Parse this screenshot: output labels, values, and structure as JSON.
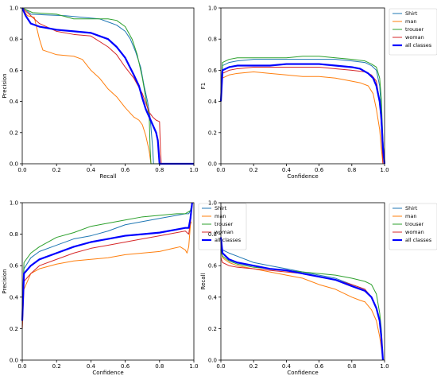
{
  "figure": {
    "colors": {
      "Shirt": "#1f77b4",
      "man": "#ff7f0e",
      "trouser": "#2ca02c",
      "woman": "#d62728",
      "all classes": "#0000ff"
    }
  },
  "chart_data": [
    {
      "id": "pr",
      "type": "line",
      "xlabel": "Recall",
      "ylabel": "Precision",
      "xlim": [
        0,
        1
      ],
      "ylim": [
        0,
        1
      ],
      "xticks": [
        0.0,
        0.2,
        0.4,
        0.6,
        0.8,
        1.0
      ],
      "yticks": [
        0.0,
        0.2,
        0.4,
        0.6,
        0.8,
        1.0
      ],
      "legend": null,
      "series": [
        {
          "name": "Shirt",
          "color": "#1f77b4",
          "width": 1,
          "x": [
            0.0,
            0.02,
            0.05,
            0.15,
            0.25,
            0.35,
            0.45,
            0.5,
            0.55,
            0.6,
            0.63,
            0.66,
            0.69,
            0.71,
            0.73,
            0.745,
            0.76,
            0.765,
            1.0
          ],
          "y": [
            1.0,
            0.99,
            0.96,
            0.955,
            0.95,
            0.94,
            0.93,
            0.91,
            0.89,
            0.85,
            0.8,
            0.72,
            0.62,
            0.5,
            0.4,
            0.3,
            0.1,
            0.0,
            0.0
          ]
        },
        {
          "name": "man",
          "color": "#ff7f0e",
          "width": 1,
          "x": [
            0.0,
            0.03,
            0.07,
            0.1,
            0.12,
            0.2,
            0.3,
            0.35,
            0.4,
            0.45,
            0.5,
            0.55,
            0.6,
            0.65,
            0.68,
            0.7,
            0.72,
            0.74,
            0.75
          ],
          "y": [
            1.0,
            0.95,
            0.94,
            0.8,
            0.73,
            0.7,
            0.69,
            0.67,
            0.6,
            0.55,
            0.48,
            0.43,
            0.36,
            0.3,
            0.28,
            0.25,
            0.18,
            0.08,
            0.0
          ]
        },
        {
          "name": "trouser",
          "color": "#2ca02c",
          "width": 1,
          "x": [
            0.0,
            0.02,
            0.06,
            0.2,
            0.3,
            0.4,
            0.5,
            0.55,
            0.6,
            0.64,
            0.67,
            0.7,
            0.72,
            0.74,
            0.745,
            0.75,
            1.0
          ],
          "y": [
            1.0,
            0.99,
            0.97,
            0.96,
            0.93,
            0.93,
            0.93,
            0.92,
            0.88,
            0.8,
            0.7,
            0.55,
            0.42,
            0.3,
            0.1,
            0.0,
            0.0
          ]
        },
        {
          "name": "woman",
          "color": "#d62728",
          "width": 1,
          "x": [
            0.0,
            0.05,
            0.1,
            0.2,
            0.3,
            0.4,
            0.5,
            0.55,
            0.6,
            0.65,
            0.7,
            0.74,
            0.76,
            0.78,
            0.8,
            0.805,
            0.81
          ],
          "y": [
            1.0,
            0.95,
            0.9,
            0.85,
            0.83,
            0.82,
            0.75,
            0.7,
            0.62,
            0.55,
            0.45,
            0.33,
            0.3,
            0.28,
            0.27,
            0.1,
            0.0
          ]
        },
        {
          "name": "all classes",
          "color": "#0000ff",
          "width": 2.2,
          "x": [
            0.0,
            0.02,
            0.05,
            0.1,
            0.15,
            0.2,
            0.3,
            0.4,
            0.45,
            0.5,
            0.55,
            0.6,
            0.65,
            0.68,
            0.7,
            0.72,
            0.74,
            0.76,
            0.78,
            0.79,
            0.8,
            1.0
          ],
          "y": [
            1.0,
            0.95,
            0.9,
            0.88,
            0.87,
            0.86,
            0.85,
            0.84,
            0.82,
            0.8,
            0.75,
            0.68,
            0.57,
            0.5,
            0.42,
            0.35,
            0.3,
            0.25,
            0.2,
            0.15,
            0.0,
            0.0
          ]
        }
      ]
    },
    {
      "id": "f1",
      "type": "line",
      "xlabel": "Confidence",
      "ylabel": "F1",
      "xlim": [
        0,
        1
      ],
      "ylim": [
        0,
        1
      ],
      "xticks": [
        0.0,
        0.2,
        0.4,
        0.6,
        0.8,
        1.0
      ],
      "yticks": [
        0.0,
        0.2,
        0.4,
        0.6,
        0.8,
        1.0
      ],
      "legend": "top-right",
      "series": [
        {
          "name": "Shirt",
          "color": "#1f77b4",
          "width": 1,
          "x": [
            0.0,
            0.01,
            0.05,
            0.1,
            0.2,
            0.3,
            0.4,
            0.5,
            0.6,
            0.7,
            0.8,
            0.88,
            0.92,
            0.95,
            0.97,
            0.98,
            0.99,
            1.0
          ],
          "y": [
            0.4,
            0.63,
            0.65,
            0.66,
            0.67,
            0.67,
            0.67,
            0.67,
            0.67,
            0.67,
            0.66,
            0.65,
            0.63,
            0.6,
            0.5,
            0.35,
            0.1,
            0.0
          ]
        },
        {
          "name": "man",
          "color": "#ff7f0e",
          "width": 1,
          "x": [
            0.0,
            0.01,
            0.05,
            0.1,
            0.2,
            0.3,
            0.4,
            0.5,
            0.6,
            0.7,
            0.8,
            0.85,
            0.9,
            0.93,
            0.95,
            0.97,
            0.98,
            0.99
          ],
          "y": [
            0.4,
            0.55,
            0.57,
            0.58,
            0.59,
            0.58,
            0.57,
            0.56,
            0.56,
            0.55,
            0.53,
            0.52,
            0.5,
            0.45,
            0.35,
            0.22,
            0.1,
            0.0
          ]
        },
        {
          "name": "trouser",
          "color": "#2ca02c",
          "width": 1,
          "x": [
            0.0,
            0.01,
            0.05,
            0.1,
            0.2,
            0.3,
            0.4,
            0.5,
            0.6,
            0.7,
            0.8,
            0.88,
            0.92,
            0.95,
            0.97,
            0.98,
            0.99,
            1.0
          ],
          "y": [
            0.45,
            0.65,
            0.67,
            0.68,
            0.68,
            0.68,
            0.68,
            0.69,
            0.69,
            0.68,
            0.67,
            0.66,
            0.64,
            0.62,
            0.55,
            0.42,
            0.15,
            0.0
          ]
        },
        {
          "name": "woman",
          "color": "#d62728",
          "width": 1,
          "x": [
            0.0,
            0.01,
            0.05,
            0.1,
            0.2,
            0.3,
            0.4,
            0.5,
            0.6,
            0.7,
            0.8,
            0.88,
            0.92,
            0.95,
            0.97,
            0.98,
            0.99
          ],
          "y": [
            0.4,
            0.58,
            0.6,
            0.61,
            0.62,
            0.62,
            0.62,
            0.62,
            0.62,
            0.61,
            0.6,
            0.59,
            0.57,
            0.53,
            0.4,
            0.25,
            0.0
          ]
        },
        {
          "name": "all classes",
          "color": "#0000ff",
          "width": 2.2,
          "x": [
            0.0,
            0.01,
            0.05,
            0.1,
            0.2,
            0.3,
            0.4,
            0.5,
            0.6,
            0.7,
            0.8,
            0.85,
            0.9,
            0.93,
            0.95,
            0.97,
            0.98,
            0.99,
            1.0
          ],
          "y": [
            0.4,
            0.6,
            0.62,
            0.63,
            0.63,
            0.63,
            0.64,
            0.64,
            0.64,
            0.63,
            0.62,
            0.61,
            0.58,
            0.55,
            0.5,
            0.4,
            0.3,
            0.1,
            0.0
          ]
        }
      ]
    },
    {
      "id": "pc",
      "type": "line",
      "xlabel": "Confidence",
      "ylabel": "Precision",
      "xlim": [
        0,
        1
      ],
      "ylim": [
        0,
        1
      ],
      "xticks": [
        0.0,
        0.2,
        0.4,
        0.6,
        0.8,
        1.0
      ],
      "yticks": [
        0.0,
        0.2,
        0.4,
        0.6,
        0.8,
        1.0
      ],
      "legend": "top-right",
      "series": [
        {
          "name": "Shirt",
          "color": "#1f77b4",
          "width": 1,
          "x": [
            0.0,
            0.01,
            0.05,
            0.1,
            0.2,
            0.3,
            0.4,
            0.5,
            0.6,
            0.7,
            0.8,
            0.9,
            0.95,
            0.97,
            0.98,
            0.99
          ],
          "y": [
            0.3,
            0.58,
            0.65,
            0.69,
            0.73,
            0.77,
            0.79,
            0.82,
            0.86,
            0.88,
            0.9,
            0.92,
            0.93,
            0.93,
            0.95,
            1.0
          ]
        },
        {
          "name": "man",
          "color": "#ff7f0e",
          "width": 1,
          "x": [
            0.0,
            0.01,
            0.05,
            0.1,
            0.2,
            0.3,
            0.4,
            0.5,
            0.6,
            0.7,
            0.8,
            0.88,
            0.92,
            0.95,
            0.96,
            0.97,
            0.98,
            0.985
          ],
          "y": [
            0.2,
            0.45,
            0.55,
            0.58,
            0.61,
            0.63,
            0.64,
            0.65,
            0.67,
            0.68,
            0.69,
            0.71,
            0.72,
            0.7,
            0.68,
            0.72,
            0.86,
            0.88
          ]
        },
        {
          "name": "trouser",
          "color": "#2ca02c",
          "width": 1,
          "x": [
            0.0,
            0.01,
            0.05,
            0.1,
            0.2,
            0.3,
            0.4,
            0.5,
            0.6,
            0.7,
            0.8,
            0.9,
            0.95,
            0.98,
            0.99
          ],
          "y": [
            0.3,
            0.62,
            0.68,
            0.72,
            0.78,
            0.81,
            0.85,
            0.87,
            0.89,
            0.91,
            0.92,
            0.93,
            0.93,
            0.95,
            1.0
          ]
        },
        {
          "name": "woman",
          "color": "#d62728",
          "width": 1,
          "x": [
            0.0,
            0.01,
            0.05,
            0.1,
            0.2,
            0.3,
            0.4,
            0.5,
            0.6,
            0.7,
            0.8,
            0.9,
            0.95,
            0.97,
            0.98,
            0.99
          ],
          "y": [
            0.2,
            0.5,
            0.55,
            0.6,
            0.64,
            0.68,
            0.71,
            0.73,
            0.75,
            0.77,
            0.79,
            0.81,
            0.82,
            0.8,
            0.88,
            0.98
          ]
        },
        {
          "name": "all classes",
          "color": "#0000ff",
          "width": 2.2,
          "x": [
            0.0,
            0.01,
            0.05,
            0.1,
            0.2,
            0.3,
            0.4,
            0.5,
            0.6,
            0.7,
            0.8,
            0.9,
            0.95,
            0.97,
            0.98,
            0.99
          ],
          "y": [
            0.25,
            0.55,
            0.6,
            0.64,
            0.68,
            0.72,
            0.75,
            0.77,
            0.79,
            0.8,
            0.81,
            0.83,
            0.84,
            0.84,
            0.9,
            1.0
          ]
        }
      ]
    },
    {
      "id": "rc",
      "type": "line",
      "xlabel": "Confidence",
      "ylabel": "Recall",
      "xlim": [
        0,
        1
      ],
      "ylim": [
        0,
        1
      ],
      "xticks": [
        0.0,
        0.2,
        0.4,
        0.6,
        0.8,
        1.0
      ],
      "yticks": [
        0.0,
        0.2,
        0.4,
        0.6,
        0.8,
        1.0
      ],
      "legend": "top-right",
      "series": [
        {
          "name": "Shirt",
          "color": "#1f77b4",
          "width": 1,
          "x": [
            0.0,
            0.01,
            0.05,
            0.1,
            0.2,
            0.3,
            0.4,
            0.5,
            0.6,
            0.7,
            0.8,
            0.88,
            0.92,
            0.95,
            0.97,
            0.98,
            0.99
          ],
          "y": [
            0.75,
            0.7,
            0.68,
            0.66,
            0.62,
            0.6,
            0.58,
            0.56,
            0.54,
            0.52,
            0.48,
            0.45,
            0.4,
            0.33,
            0.25,
            0.15,
            0.0
          ]
        },
        {
          "name": "man",
          "color": "#ff7f0e",
          "width": 1,
          "x": [
            0.0,
            0.01,
            0.05,
            0.1,
            0.2,
            0.3,
            0.4,
            0.5,
            0.55,
            0.6,
            0.7,
            0.8,
            0.85,
            0.88,
            0.92,
            0.95,
            0.97,
            0.98,
            0.99
          ],
          "y": [
            0.7,
            0.65,
            0.62,
            0.6,
            0.58,
            0.56,
            0.54,
            0.52,
            0.5,
            0.48,
            0.45,
            0.4,
            0.38,
            0.37,
            0.32,
            0.25,
            0.15,
            0.08,
            0.0
          ]
        },
        {
          "name": "trouser",
          "color": "#2ca02c",
          "width": 1,
          "x": [
            0.0,
            0.01,
            0.05,
            0.1,
            0.2,
            0.3,
            0.4,
            0.5,
            0.6,
            0.7,
            0.8,
            0.88,
            0.92,
            0.95,
            0.97,
            0.98,
            0.99
          ],
          "y": [
            0.7,
            0.66,
            0.63,
            0.61,
            0.59,
            0.58,
            0.57,
            0.56,
            0.55,
            0.54,
            0.52,
            0.5,
            0.48,
            0.42,
            0.3,
            0.2,
            0.0
          ]
        },
        {
          "name": "woman",
          "color": "#d62728",
          "width": 1,
          "x": [
            0.0,
            0.01,
            0.05,
            0.1,
            0.2,
            0.3,
            0.4,
            0.5,
            0.6,
            0.7,
            0.8,
            0.88,
            0.92,
            0.95,
            0.97,
            0.98,
            0.99
          ],
          "y": [
            0.65,
            0.62,
            0.6,
            0.59,
            0.58,
            0.57,
            0.56,
            0.55,
            0.53,
            0.51,
            0.48,
            0.45,
            0.4,
            0.33,
            0.25,
            0.12,
            0.0
          ]
        },
        {
          "name": "all classes",
          "color": "#0000ff",
          "width": 2.2,
          "x": [
            0.0,
            0.01,
            0.05,
            0.1,
            0.2,
            0.3,
            0.4,
            0.5,
            0.6,
            0.7,
            0.8,
            0.88,
            0.92,
            0.95,
            0.97,
            0.98,
            0.99
          ],
          "y": [
            0.78,
            0.68,
            0.64,
            0.62,
            0.6,
            0.58,
            0.57,
            0.55,
            0.53,
            0.51,
            0.47,
            0.44,
            0.4,
            0.33,
            0.25,
            0.15,
            0.0
          ]
        }
      ]
    }
  ]
}
